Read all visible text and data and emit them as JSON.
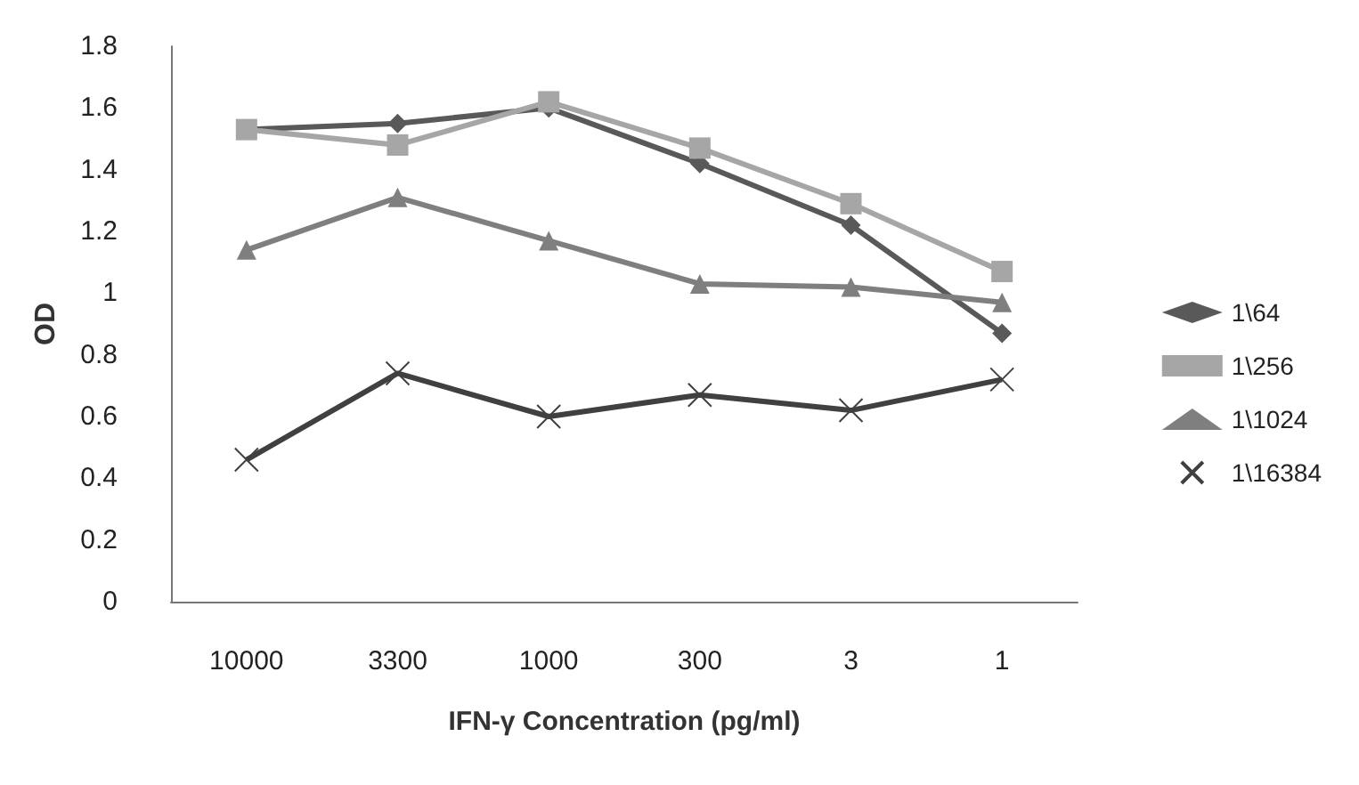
{
  "chart_data": {
    "type": "line",
    "xlabel": "IFN-γ Concentration (pg/ml)",
    "ylabel": "OD",
    "categories": [
      "10000",
      "3300",
      "1000",
      "300",
      "3",
      "1"
    ],
    "series": [
      {
        "name": "1\\64",
        "color": "#595959",
        "marker": "diamond",
        "values": [
          1.53,
          1.55,
          1.6,
          1.42,
          1.22,
          0.87
        ]
      },
      {
        "name": "1\\256",
        "color": "#a6a6a6",
        "marker": "square",
        "values": [
          1.53,
          1.48,
          1.62,
          1.47,
          1.29,
          1.07
        ]
      },
      {
        "name": "1\\1024",
        "color": "#7f7f7f",
        "marker": "triangle",
        "values": [
          1.14,
          1.31,
          1.17,
          1.03,
          1.02,
          0.97
        ]
      },
      {
        "name": "1\\16384",
        "color": "#404040",
        "marker": "cross",
        "values": [
          0.46,
          0.74,
          0.6,
          0.67,
          0.62,
          0.72
        ]
      }
    ],
    "ylim": [
      0,
      1.8
    ],
    "yticks": [
      0,
      0.2,
      0.4,
      0.6,
      0.8,
      1,
      1.2,
      1.4,
      1.6,
      1.8
    ],
    "grid": false,
    "legend": "right",
    "line_style": "solid"
  }
}
